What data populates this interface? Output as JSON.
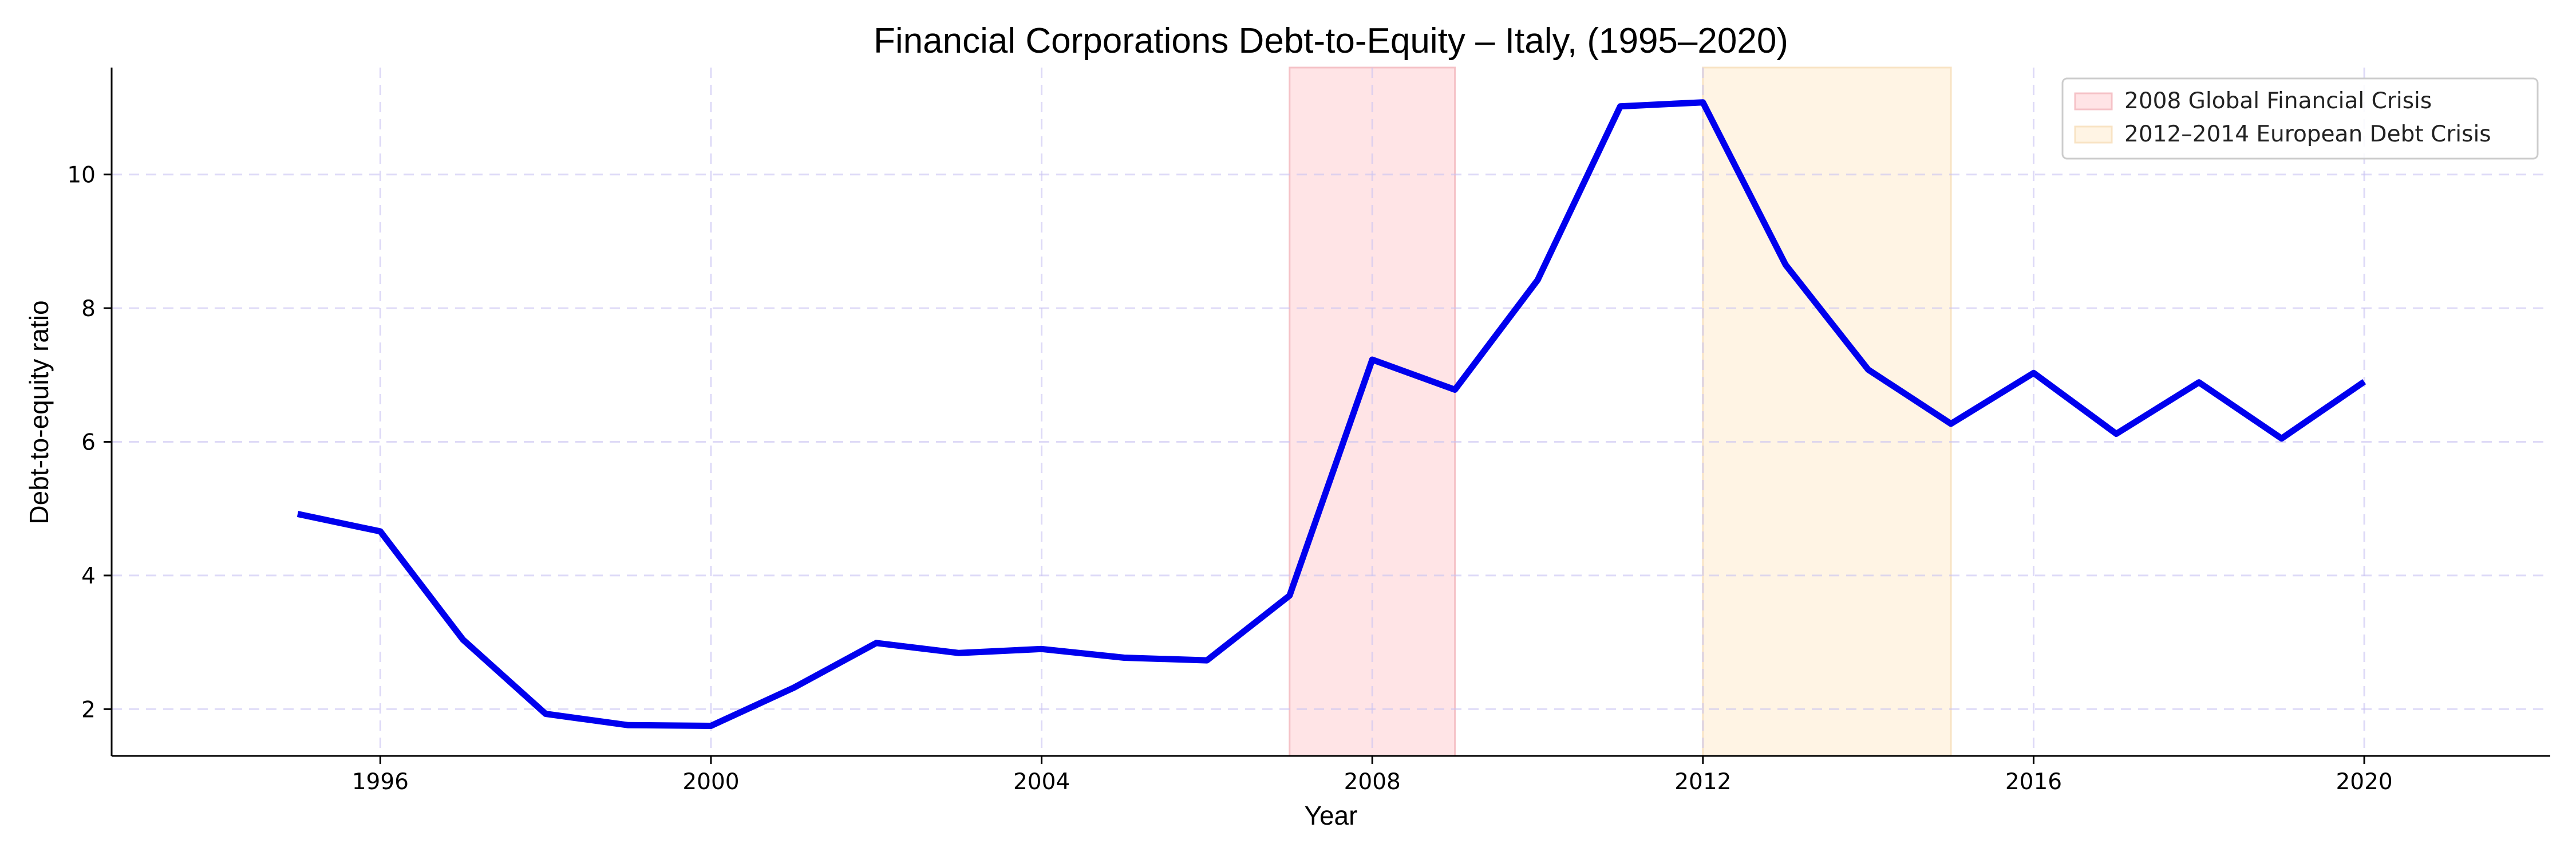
{
  "chart_data": {
    "type": "line",
    "title": "Financial Corporations Debt-to-Equity – Italy, (1995–2020)",
    "xlabel": "Year",
    "ylabel": "Debt-to-equity ratio",
    "xlim": [
      1992.75,
      2022.25
    ],
    "ylim": [
      1.3,
      11.6
    ],
    "xticks": [
      1996,
      2000,
      2004,
      2008,
      2012,
      2016,
      2020
    ],
    "yticks": [
      2,
      4,
      6,
      8,
      10
    ],
    "grid": true,
    "legend_position": "top-right",
    "series": [
      {
        "color": "#0000ee",
        "x": [
          1995,
          1996,
          1997,
          1998,
          1999,
          2000,
          2001,
          2002,
          2003,
          2004,
          2005,
          2006,
          2007,
          2008,
          2009,
          2010,
          2011,
          2012,
          2013,
          2014,
          2015,
          2016,
          2017,
          2018,
          2019,
          2020
        ],
        "y": [
          4.92,
          4.66,
          3.04,
          1.93,
          1.76,
          1.75,
          2.32,
          2.99,
          2.84,
          2.9,
          2.77,
          2.73,
          3.7,
          7.23,
          6.78,
          8.42,
          11.02,
          11.08,
          8.65,
          7.08,
          6.27,
          7.03,
          6.12,
          6.89,
          6.05,
          6.9
        ]
      }
    ],
    "shaded_regions": [
      {
        "label": "2008 Global Financial Crisis",
        "x_start": 2007,
        "x_end": 2009,
        "color": "#ffe4e6",
        "edge": "#f5c2c7"
      },
      {
        "label": "2012–2014 European Debt Crisis",
        "x_start": 2012,
        "x_end": 2015,
        "color": "#fff4e4",
        "edge": "#f8e3c4"
      }
    ]
  }
}
